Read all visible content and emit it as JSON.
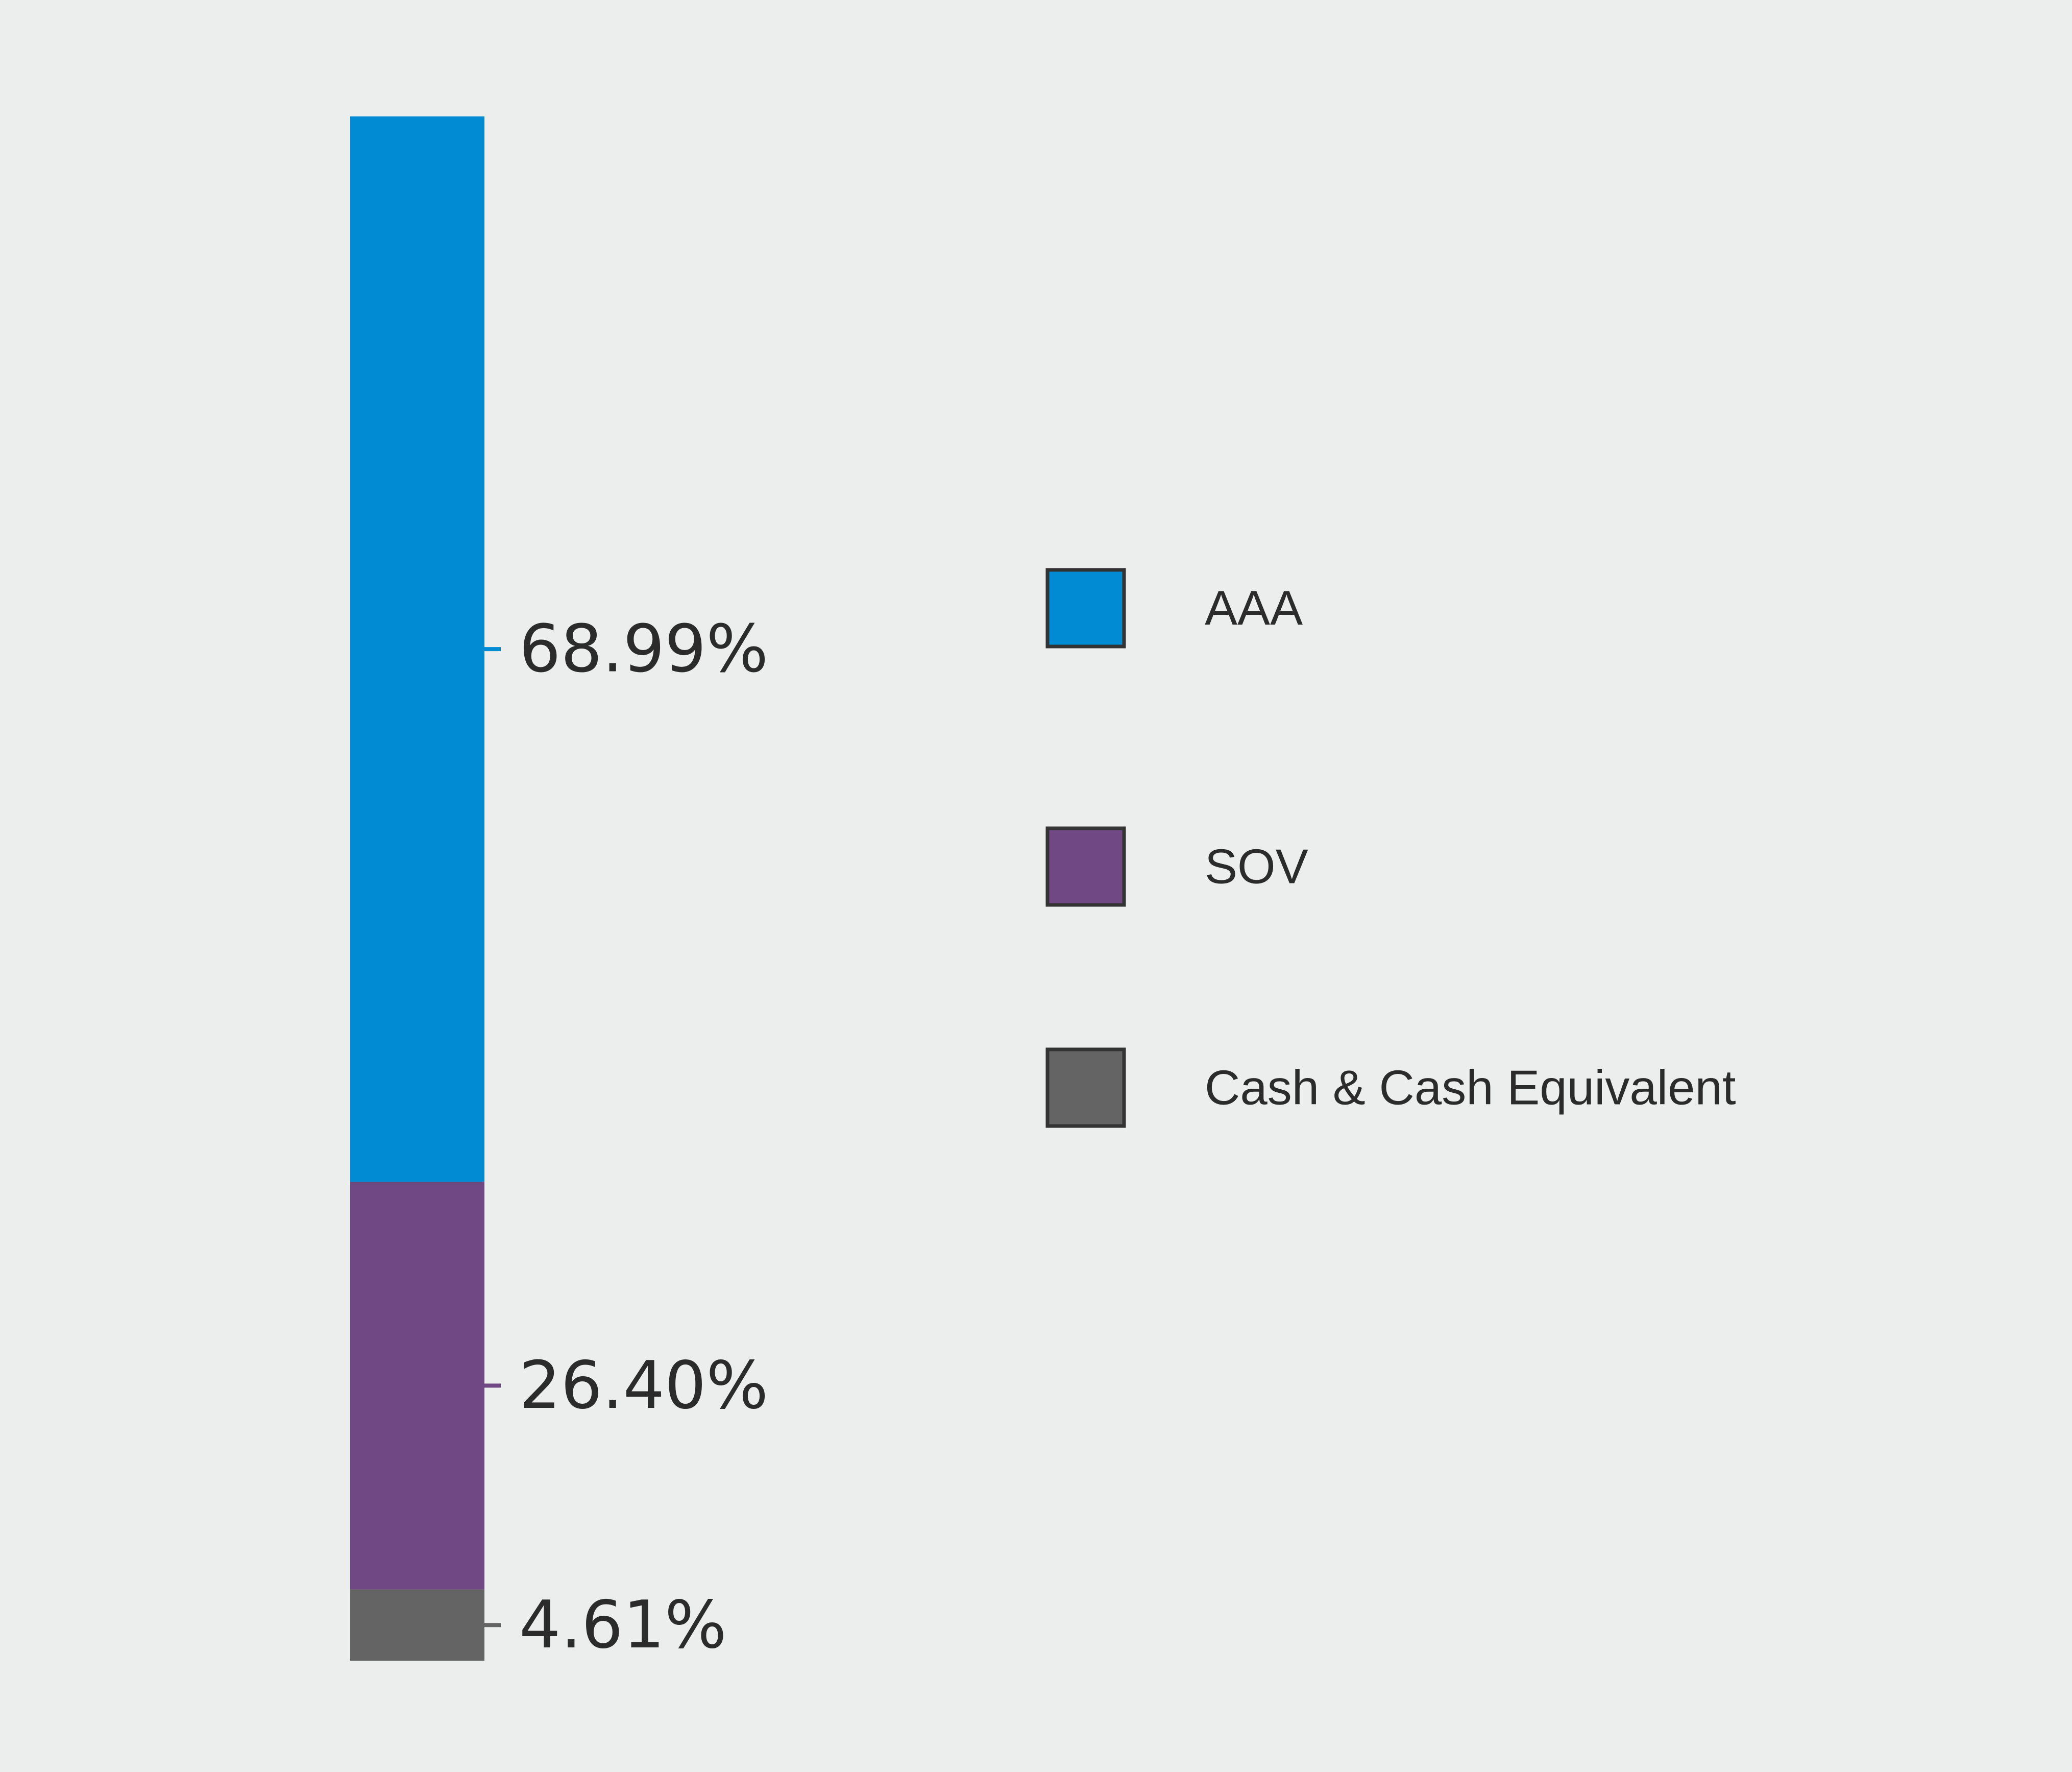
{
  "chart_data": {
    "type": "bar",
    "stacked": true,
    "orientation": "vertical",
    "categories": [
      ""
    ],
    "series": [
      {
        "name": "AAA",
        "values": [
          68.99
        ],
        "label": "68.99%",
        "color": "#008bd3"
      },
      {
        "name": "SOV",
        "values": [
          26.4
        ],
        "label": "26.40%",
        "color": "#704883"
      },
      {
        "name": "Cash & Cash Equivalent",
        "values": [
          4.61
        ],
        "label": "4.61%",
        "color": "#646464"
      }
    ],
    "ylim": [
      0,
      100
    ],
    "grid": false,
    "legend_position": "right",
    "title": "",
    "xlabel": "",
    "ylabel": ""
  }
}
